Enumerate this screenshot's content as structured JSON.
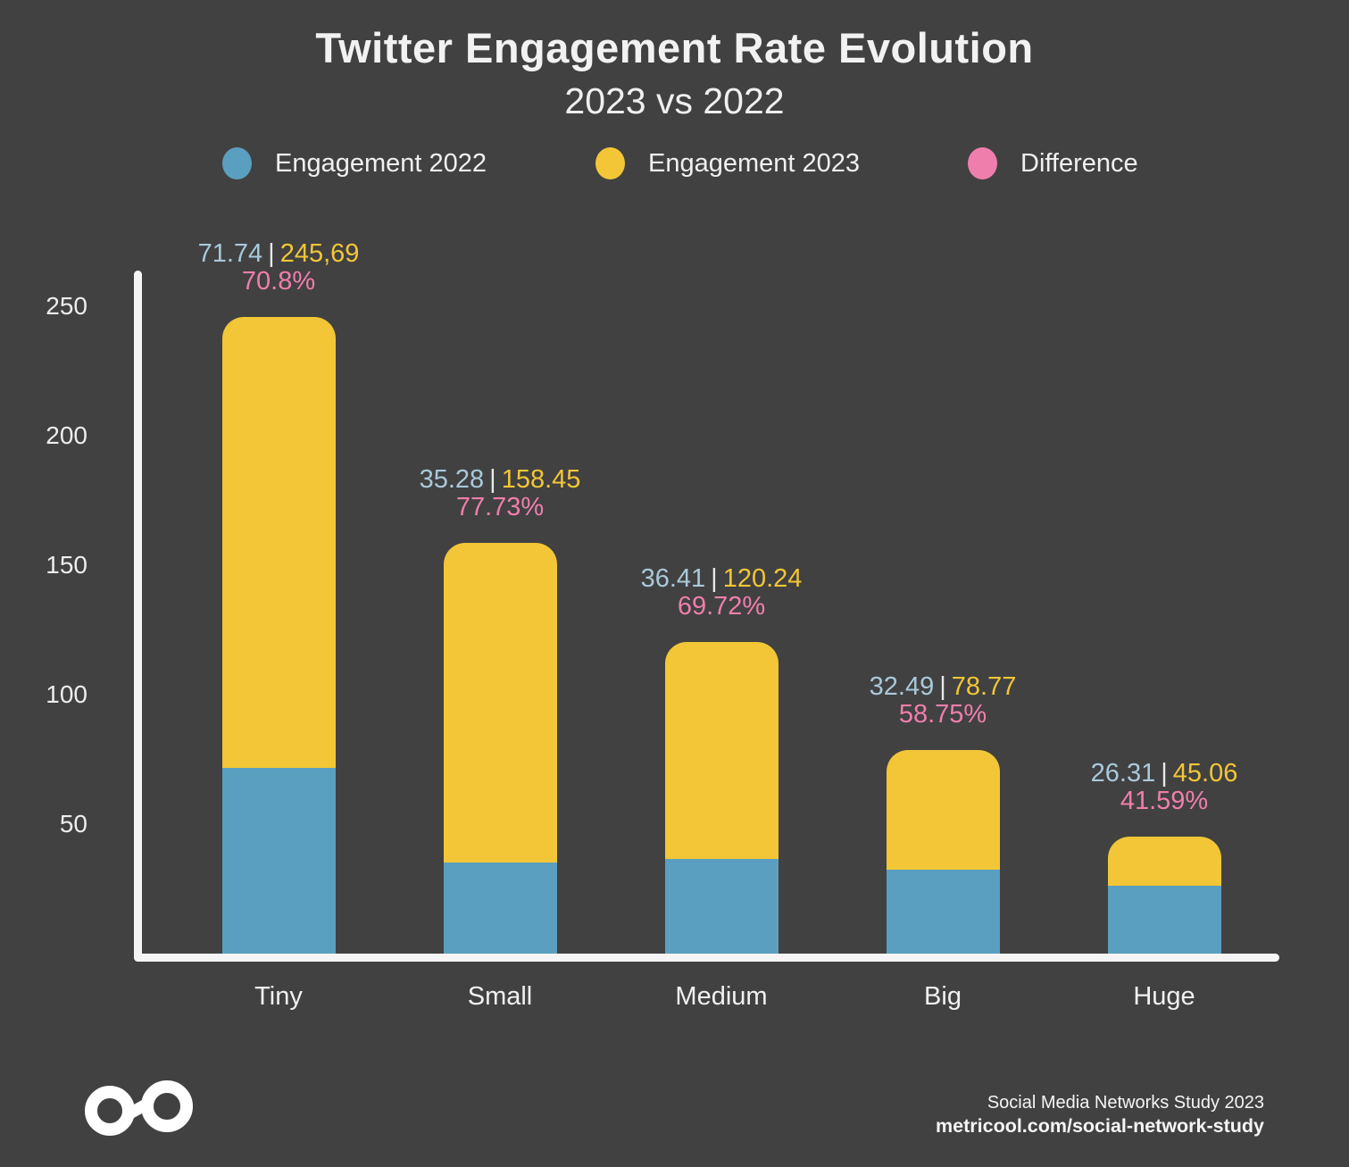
{
  "colors": {
    "background": "#414141",
    "axis": "#F5F5F5",
    "text": "#F2F2F2",
    "value_2022_text": "#A9C9DA",
    "separator_text": "#E8E8E8",
    "logo": "#FFFFFF"
  },
  "chart_data": {
    "type": "bar",
    "title": "Twitter Engagement Rate Evolution",
    "subtitle": "2023 vs 2022",
    "categories": [
      "Tiny",
      "Small",
      "Medium",
      "Big",
      "Huge"
    ],
    "series": [
      {
        "name": "Engagement 2022",
        "color": "#5A9FBF",
        "values": [
          71.74,
          35.28,
          36.41,
          32.49,
          26.31
        ]
      },
      {
        "name": "Engagement 2023",
        "color": "#F2C636",
        "values": [
          245.69,
          158.45,
          120.24,
          78.77,
          45.06
        ]
      }
    ],
    "difference": {
      "name": "Difference",
      "color": "#F07EAC",
      "values_percent": [
        70.8,
        77.73,
        69.72,
        58.75,
        41.59
      ]
    },
    "bar_labels": [
      {
        "text_2022": "71.74",
        "text_2023": "245,69",
        "text_diff": "70.8%"
      },
      {
        "text_2022": "35.28",
        "text_2023": "158.45",
        "text_diff": "77.73%"
      },
      {
        "text_2022": "36.41",
        "text_2023": "120.24",
        "text_diff": "69.72%"
      },
      {
        "text_2022": "32.49",
        "text_2023": "78.77",
        "text_diff": "58.75%"
      },
      {
        "text_2022": "26.31",
        "text_2023": "45.06",
        "text_diff": "41.59%"
      }
    ],
    "y_ticks": [
      50,
      100,
      150,
      200,
      250
    ],
    "ylim": [
      0,
      265
    ],
    "grid": false,
    "legend_position": "top",
    "bar_style": "overlaid"
  },
  "footer": {
    "study": "Social Media Networks Study 2023",
    "url": "metricool.com/social-network-study",
    "logo": "metricool-logo"
  }
}
